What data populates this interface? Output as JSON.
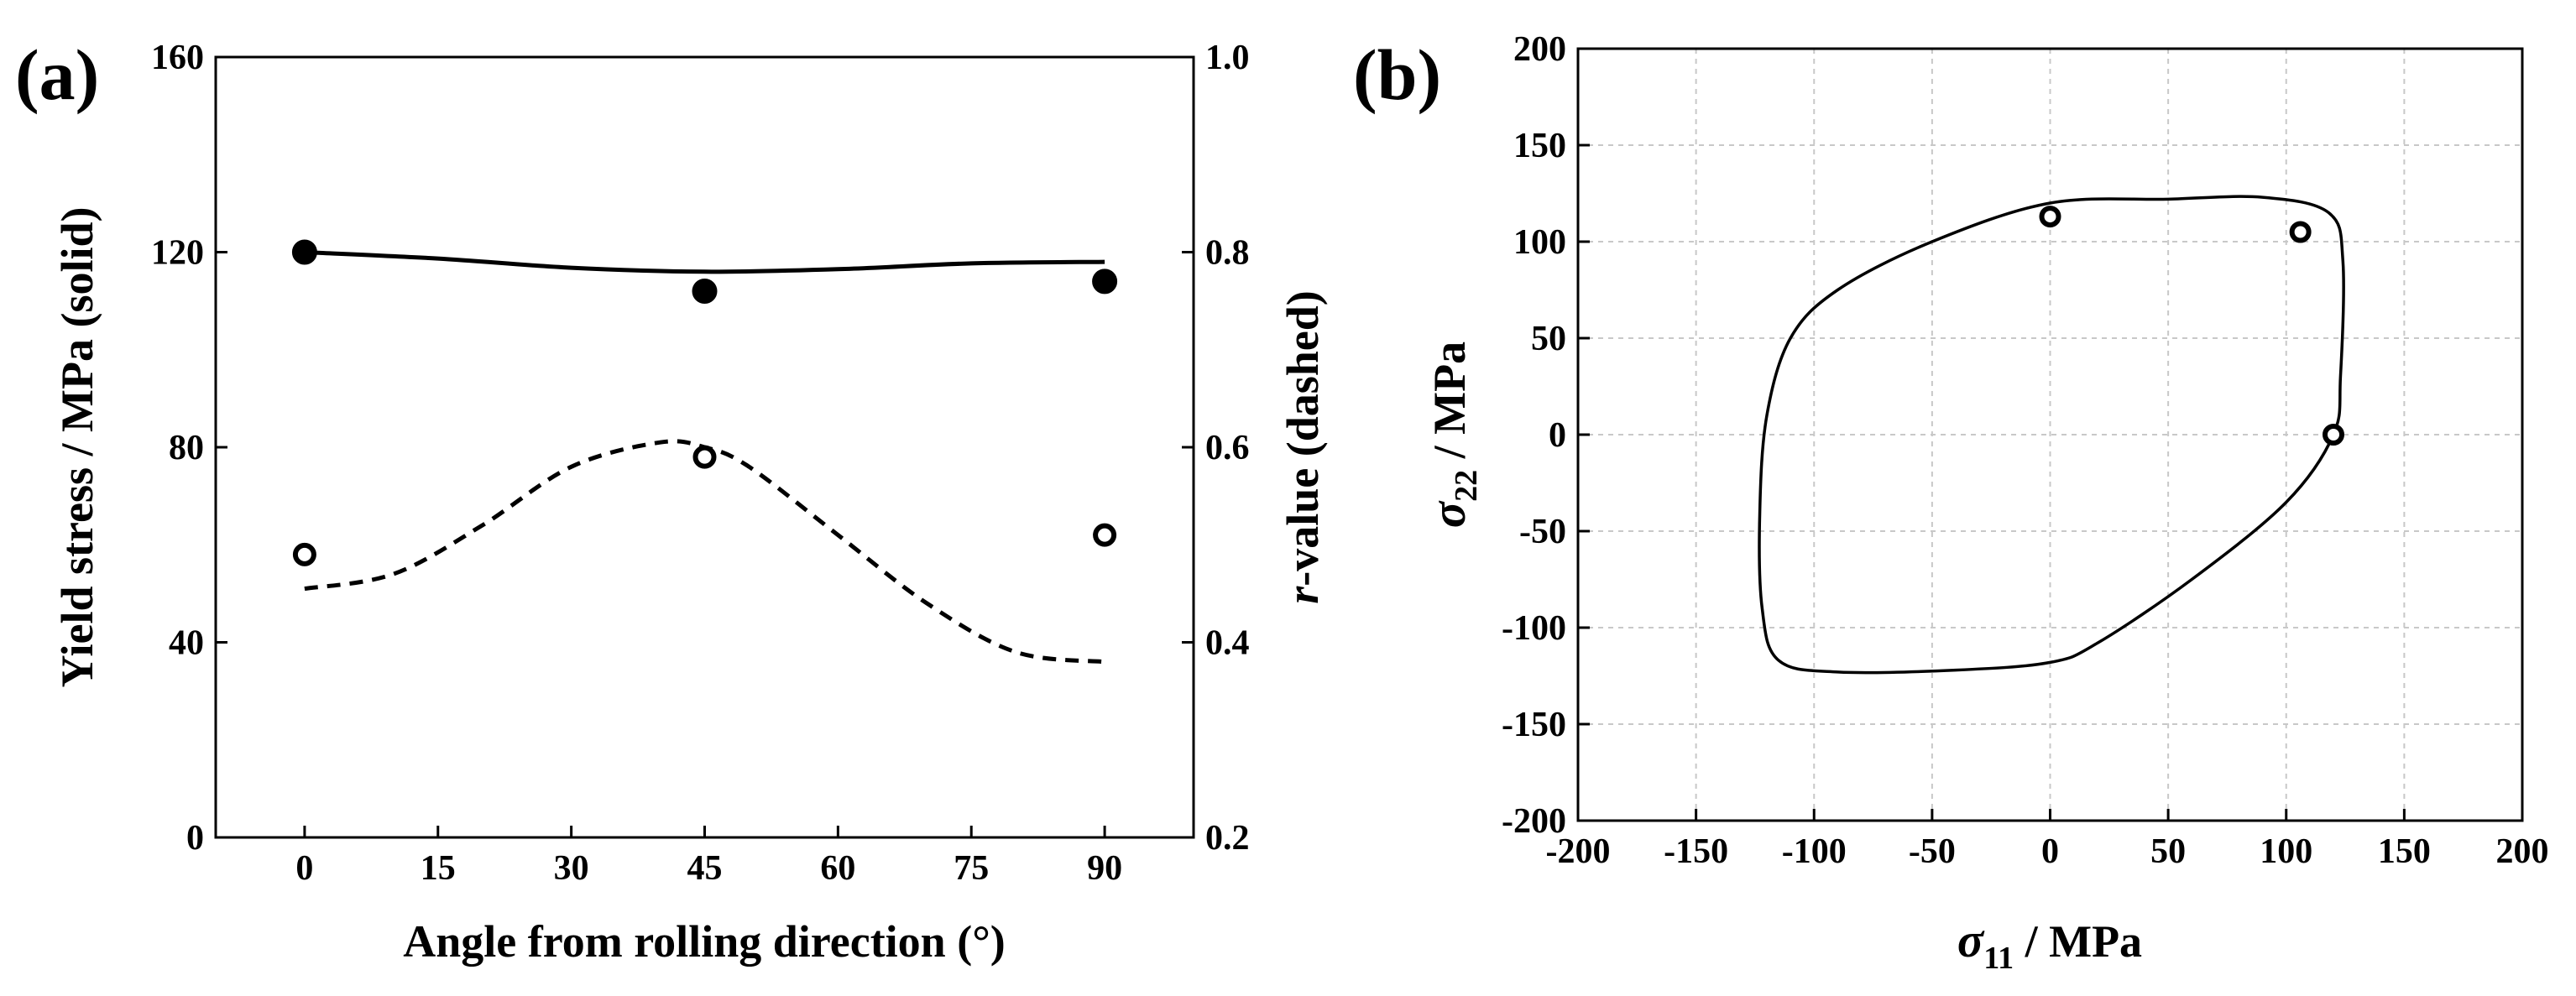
{
  "chart_data": [
    {
      "type": "scatter",
      "panel_label": "(a)",
      "xlabel": "Angle from rolling direction (°)",
      "ylabel_left": "Yield stress / MPa (solid)",
      "ylabel_right_italic": "r",
      "ylabel_right_rest": "-value (dashed)",
      "xlim": [
        -10,
        100
      ],
      "ylim_left": [
        0,
        160
      ],
      "ylim_right": [
        0.2,
        1.0
      ],
      "xticks": [
        "0",
        "15",
        "30",
        "45",
        "60",
        "75",
        "90"
      ],
      "yticks_left": [
        "0",
        "40",
        "80",
        "120",
        "160"
      ],
      "yticks_right": [
        "0.2",
        "0.4",
        "0.6",
        "0.8",
        "1.0"
      ],
      "grid": false,
      "series": [
        {
          "axis": "left",
          "style": "filled-marker",
          "x": [
            0,
            45,
            90
          ],
          "y": [
            120,
            112,
            114
          ]
        },
        {
          "axis": "left",
          "style": "solid-line",
          "x": [
            0,
            15,
            30,
            45,
            60,
            75,
            90
          ],
          "y": [
            120,
            118.7,
            116.8,
            116,
            116.5,
            117.7,
            118
          ]
        },
        {
          "axis": "right",
          "style": "open-marker",
          "x": [
            0,
            45,
            90
          ],
          "y": [
            0.49,
            0.59,
            0.51
          ]
        },
        {
          "axis": "right",
          "style": "dashed-line",
          "x": [
            0,
            10,
            20,
            30,
            40,
            45,
            50,
            60,
            70,
            80,
            90
          ],
          "y": [
            0.455,
            0.47,
            0.52,
            0.58,
            0.605,
            0.6,
            0.58,
            0.51,
            0.44,
            0.39,
            0.38
          ]
        }
      ]
    },
    {
      "type": "scatter",
      "panel_label": "(b)",
      "xlabel_sym": "σ",
      "xlabel_sub": "11",
      "xlabel_rest": " / MPa",
      "ylabel_sym": "σ",
      "ylabel_sub": "22",
      "ylabel_rest": " / MPa",
      "xlim": [
        -200,
        200
      ],
      "ylim": [
        -200,
        200
      ],
      "xticks": [
        "-200",
        "-150",
        "-100",
        "-50",
        "0",
        "50",
        "100",
        "150",
        "200"
      ],
      "yticks": [
        "-200",
        "-150",
        "-100",
        "-50",
        "0",
        "50",
        "100",
        "150",
        "200"
      ],
      "grid": true,
      "series": [
        {
          "style": "closed-curve",
          "x": [
            0,
            50,
            90,
            118,
            124,
            123,
            120,
            100,
            60,
            20,
            0,
            -40,
            -90,
            -115,
            -122,
            -123,
            -120,
            -110,
            -90,
            -50,
            0
          ],
          "y": [
            120,
            122,
            123,
            115,
            90,
            30,
            0,
            -35,
            -75,
            -108,
            -118,
            -122,
            -123,
            -117,
            -90,
            -40,
            10,
            50,
            75,
            100,
            120
          ]
        },
        {
          "style": "open-marker",
          "x": [
            0,
            106,
            120
          ],
          "y": [
            113,
            105,
            0
          ]
        }
      ]
    }
  ]
}
